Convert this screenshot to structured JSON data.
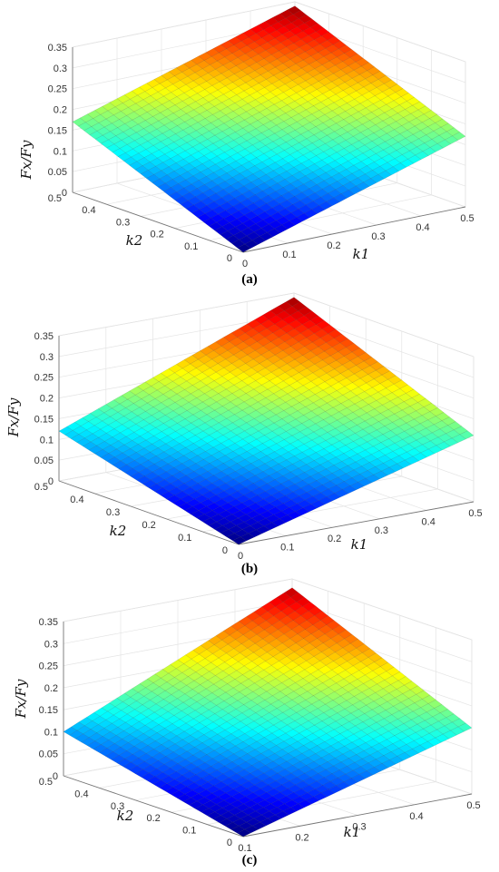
{
  "chart_data": [
    {
      "type": "surface3d",
      "caption": "(a)",
      "xlabel": "k1",
      "ylabel": "k2",
      "zlabel": "Fx/Fy",
      "x_ticks": [
        "0",
        "0.1",
        "0.2",
        "0.3",
        "0.4",
        "0.5"
      ],
      "y_ticks": [
        "0",
        "0.1",
        "0.2",
        "0.3",
        "0.4",
        "0.5"
      ],
      "z_ticks": [
        "0",
        "0.05",
        "0.1",
        "0.15",
        "0.2",
        "0.25",
        "0.3",
        "0.35"
      ],
      "xlim": [
        0,
        0.5
      ],
      "ylim": [
        0,
        0.5
      ],
      "zlim": [
        0,
        0.35
      ],
      "grid": true,
      "colormap": "jet",
      "corners": [
        {
          "k1": 0,
          "k2": 0,
          "value": 0
        },
        {
          "k1": 0.5,
          "k2": 0,
          "value": 0.17
        },
        {
          "k1": 0,
          "k2": 0.5,
          "value": 0.17
        },
        {
          "k1": 0.5,
          "k2": 0.5,
          "value": 0.34
        }
      ]
    },
    {
      "type": "surface3d",
      "caption": "(b)",
      "xlabel": "k1",
      "ylabel": "k2",
      "zlabel": "Fx/Fy",
      "x_ticks": [
        "0",
        "0.1",
        "0.2",
        "0.3",
        "0.4",
        "0.5"
      ],
      "y_ticks": [
        "0",
        "0.1",
        "0.2",
        "0.3",
        "0.4",
        "0.5"
      ],
      "z_ticks": [
        "0",
        "0.05",
        "0.1",
        "0.15",
        "0.2",
        "0.25",
        "0.3",
        "0.35"
      ],
      "xlim": [
        0,
        0.5
      ],
      "ylim": [
        0,
        0.5
      ],
      "zlim": [
        0,
        0.35
      ],
      "grid": true,
      "colormap": "jet",
      "corners": [
        {
          "k1": 0,
          "k2": 0,
          "value": 0
        },
        {
          "k1": 0.5,
          "k2": 0,
          "value": 0.16
        },
        {
          "k1": 0,
          "k2": 0.5,
          "value": 0.12
        },
        {
          "k1": 0.5,
          "k2": 0.5,
          "value": 0.34
        }
      ]
    },
    {
      "type": "surface3d",
      "caption": "(c)",
      "xlabel": "k1",
      "ylabel": "k2",
      "zlabel": "Fx/Fy",
      "x_ticks": [
        "0.1",
        "0.2",
        "0.3",
        "0.4",
        "0.5"
      ],
      "y_ticks": [
        "0",
        "0.1",
        "0.2",
        "0.3",
        "0.4",
        "0.5"
      ],
      "z_ticks": [
        "0",
        "0.05",
        "0.1",
        "0.15",
        "0.2",
        "0.25",
        "0.3",
        "0.35"
      ],
      "xlim": [
        0.1,
        0.5
      ],
      "ylim": [
        0,
        0.5
      ],
      "zlim": [
        0,
        0.35
      ],
      "grid": true,
      "colormap": "jet",
      "corners": [
        {
          "k1": 0.1,
          "k2": 0,
          "value": 0
        },
        {
          "k1": 0.5,
          "k2": 0,
          "value": 0.15
        },
        {
          "k1": 0.1,
          "k2": 0.5,
          "value": 0.1
        },
        {
          "k1": 0.5,
          "k2": 0.5,
          "value": 0.33
        }
      ]
    }
  ]
}
